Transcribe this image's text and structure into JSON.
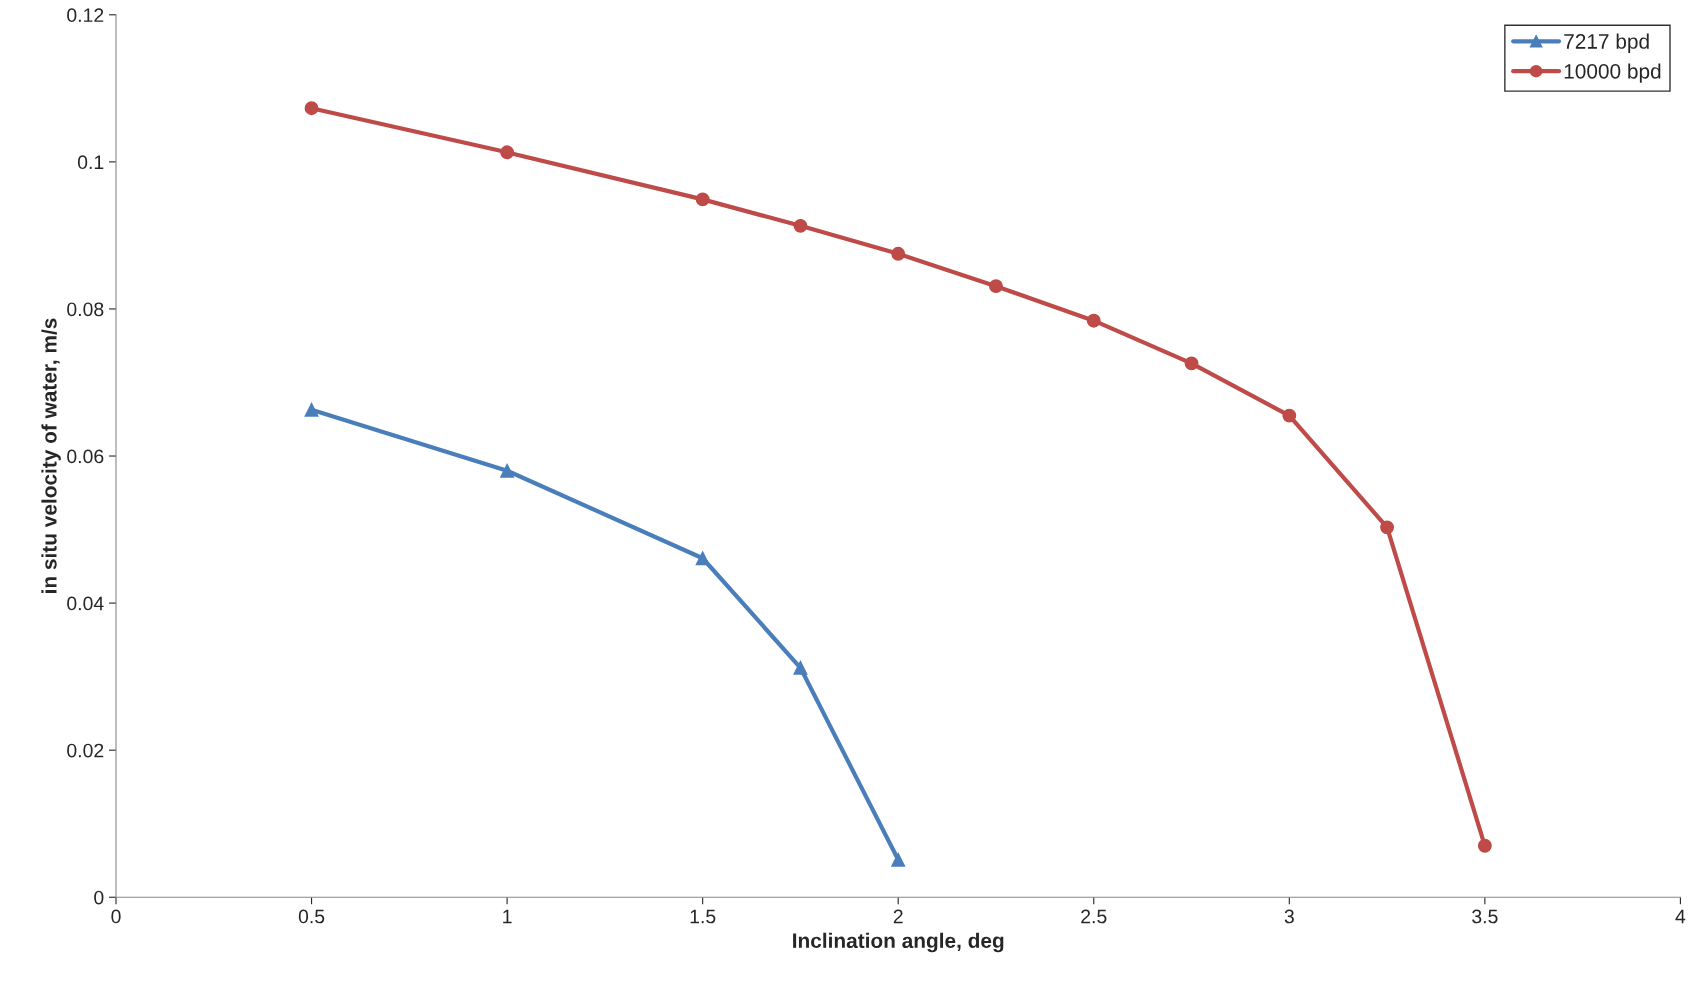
{
  "chart_data": {
    "type": "line",
    "xlabel": "Inclination angle, deg",
    "ylabel": "in situ velocity of water, m/s",
    "xlim": [
      0,
      4
    ],
    "xticks": [
      0,
      0.5,
      1,
      1.5,
      2,
      2.5,
      3,
      3.5,
      4
    ],
    "ylim": [
      0,
      0.12
    ],
    "yticks": [
      0,
      0.02,
      0.04,
      0.06,
      0.08,
      0.1,
      0.12
    ],
    "grid": false,
    "legend": "top right",
    "series": [
      {
        "name": "7217 bpd",
        "color": "#4a7ebb",
        "marker": "triangle",
        "x": [
          0.5,
          1,
          1.5,
          1.75,
          2
        ],
        "values": [
          0.0663,
          0.058,
          0.0461,
          0.0312,
          0.0051
        ]
      },
      {
        "name": "10000 bpd",
        "color": "#be4b48",
        "marker": "circle",
        "x": [
          0.5,
          1,
          1.5,
          1.75,
          2,
          2.25,
          2.5,
          2.75,
          3,
          3.25,
          3.5
        ],
        "values": [
          0.1073,
          0.1013,
          0.0949,
          0.0913,
          0.0875,
          0.0831,
          0.0784,
          0.0726,
          0.0655,
          0.0503,
          0.007
        ]
      }
    ]
  }
}
